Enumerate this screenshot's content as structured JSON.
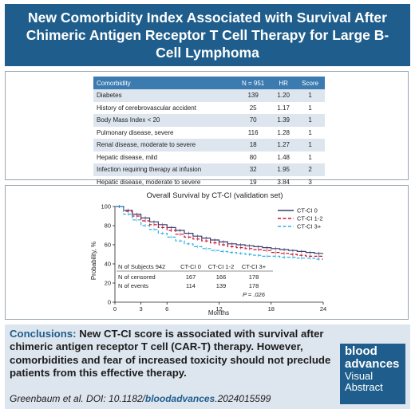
{
  "header": {
    "title": "New Comorbidity Index Associated with Survival After Chimeric Antigen Receptor T Cell Therapy for Large B-Cell Lymphoma"
  },
  "table": {
    "columns": [
      "Comorbidity",
      "N = 951",
      "HR",
      "Score"
    ],
    "rows": [
      [
        "Diabetes",
        "139",
        "1.20",
        "1"
      ],
      [
        "History of cerebrovascular accident",
        "25",
        "1.17",
        "1"
      ],
      [
        "Body Mass Index < 20",
        "70",
        "1.39",
        "1"
      ],
      [
        "Pulmonary disease, severe",
        "116",
        "1.28",
        "1"
      ],
      [
        "Renal disease, moderate to severe",
        "18",
        "1.27",
        "1"
      ],
      [
        "Hepatic disease, mild",
        "80",
        "1.48",
        "1"
      ],
      [
        "Infection requiring therapy at infusion",
        "32",
        "1.95",
        "2"
      ],
      [
        "Hepatic disease, moderate to severe",
        "19",
        "3.84",
        "3"
      ]
    ]
  },
  "chart_data": {
    "type": "line",
    "title": "Overall Survival by CT-CI (validation set)",
    "xlabel": "Months",
    "ylabel": "Probability, %",
    "xlim": [
      0,
      24
    ],
    "ylim": [
      0,
      100
    ],
    "xticks": [
      0,
      3,
      6,
      12,
      18,
      24
    ],
    "yticks": [
      0,
      20,
      40,
      60,
      80,
      100
    ],
    "legend_position": "top-right",
    "series": [
      {
        "name": "CT-CI 0",
        "color": "#3a3f6e",
        "dash": "solid",
        "x": [
          0,
          1,
          2,
          3,
          4,
          5,
          6,
          7,
          8,
          9,
          10,
          11,
          12,
          13,
          14,
          15,
          16,
          17,
          18,
          19,
          20,
          21,
          22,
          23,
          24
        ],
        "y": [
          100,
          96,
          92,
          88,
          84,
          81,
          78,
          75,
          72,
          69,
          67,
          65,
          63,
          61,
          60,
          59,
          58,
          57,
          56,
          55,
          54,
          53,
          52,
          51,
          51
        ]
      },
      {
        "name": "CT-CI 1-2",
        "color": "#c8102e",
        "dash": "dashed",
        "x": [
          0,
          1,
          2,
          3,
          4,
          5,
          6,
          7,
          8,
          9,
          10,
          11,
          12,
          13,
          14,
          15,
          16,
          17,
          18,
          19,
          20,
          21,
          22,
          23,
          24
        ],
        "y": [
          100,
          95,
          90,
          85,
          81,
          78,
          75,
          71,
          68,
          66,
          64,
          62,
          60,
          58,
          57,
          56,
          55,
          54,
          52,
          51,
          50,
          49,
          48,
          48,
          47
        ]
      },
      {
        "name": "CT-CI 3+",
        "color": "#2ab1e0",
        "dash": "dashed",
        "x": [
          0,
          1,
          2,
          3,
          4,
          5,
          6,
          7,
          8,
          9,
          10,
          11,
          12,
          13,
          14,
          15,
          16,
          17,
          18,
          19,
          20,
          21,
          22,
          23,
          24
        ],
        "y": [
          100,
          92,
          86,
          80,
          76,
          72,
          68,
          64,
          61,
          58,
          56,
          54,
          53,
          52,
          51,
          50,
          49,
          48,
          48,
          47,
          47,
          46,
          46,
          45,
          45
        ]
      }
    ],
    "inset_table": {
      "header": [
        "N of Subjects 942",
        "CT-CI 0",
        "CT-CI 1-2",
        "CT-CI 3+"
      ],
      "rows": [
        [
          "N of censored",
          "167",
          "166",
          "178"
        ],
        [
          "N of events",
          "114",
          "139",
          "178"
        ]
      ],
      "pvalue": "P = .026"
    }
  },
  "conclusions": {
    "lead": "Conclusions:",
    "text": " New CT-CI score is associated with survival after chimeric antigen receptor T cell (CAR-T) therapy. However, comorbidities and fear of increased toxicity should not preclude patients from this effective therapy."
  },
  "citation": {
    "prefix": "Greenbaum et al. DOI: 10.1182/",
    "emphasis": "bloodadvances",
    "suffix": ".2024015599"
  },
  "logo": {
    "line1": "blood",
    "line2": "advances",
    "line3": "Visual",
    "line4": "Abstract"
  }
}
